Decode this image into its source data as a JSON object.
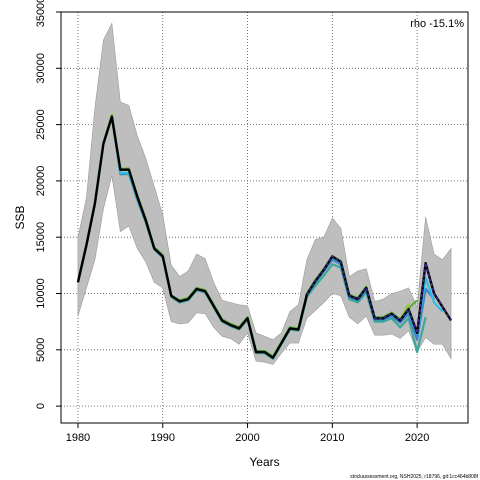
{
  "chart_data": {
    "type": "line",
    "xlabel": "Years",
    "ylabel": "SSB",
    "xlim": [
      1978,
      2026
    ],
    "ylim": [
      -1500,
      35000
    ],
    "x_ticks": [
      1980,
      1990,
      2000,
      2010,
      2020
    ],
    "y_ticks": [
      0,
      5000,
      10000,
      15000,
      20000,
      25000,
      30000,
      35000
    ],
    "grid": true,
    "annotation": "rho -15.1%",
    "footer": "stockassessment.org, NSH2025, r18796, git:1cc464b808f",
    "confidence_band": {
      "years": [
        1980,
        1981,
        1982,
        1983,
        1984,
        1985,
        1986,
        1987,
        1988,
        1989,
        1990,
        1991,
        1992,
        1993,
        1994,
        1995,
        1996,
        1997,
        1998,
        1999,
        2000,
        2001,
        2002,
        2003,
        2004,
        2005,
        2006,
        2007,
        2008,
        2009,
        2010,
        2011,
        2012,
        2013,
        2014,
        2015,
        2016,
        2017,
        2018,
        2019,
        2020,
        2021,
        2022,
        2023,
        2024
      ],
      "lower": [
        8000,
        10500,
        13000,
        17500,
        20500,
        15500,
        16000,
        14000,
        12800,
        11000,
        10500,
        7500,
        7300,
        7400,
        8300,
        8200,
        7000,
        6200,
        6000,
        5500,
        6500,
        4000,
        3900,
        3700,
        4700,
        5600,
        5600,
        7800,
        8500,
        9200,
        10000,
        9800,
        7900,
        7300,
        8000,
        6300,
        6300,
        6400,
        6000,
        6700,
        4800,
        6100,
        5500,
        5500,
        4200
      ],
      "upper": [
        15000,
        18500,
        26500,
        32500,
        34000,
        27000,
        26700,
        24000,
        22000,
        19500,
        17000,
        12500,
        11500,
        12000,
        13500,
        13100,
        11000,
        9400,
        9200,
        9000,
        8900,
        6500,
        6200,
        5900,
        6500,
        8400,
        9000,
        13000,
        14800,
        15000,
        16700,
        15800,
        11500,
        12000,
        12200,
        9300,
        9500,
        10000,
        10200,
        10500,
        8800,
        16800,
        13500,
        13000,
        14000
      ]
    },
    "series": [
      {
        "x": [
          1980,
          1981,
          1982,
          1983,
          1984,
          1985,
          1986,
          1987,
          1988,
          1989,
          1990,
          1991,
          1992,
          1993,
          1994,
          1995,
          1996,
          1997,
          1998,
          1999,
          2000,
          2001,
          2002,
          2003,
          2004,
          2005,
          2006,
          2007,
          2008,
          2009,
          2010,
          2011,
          2012,
          2013,
          2014,
          2015,
          2016,
          2017,
          2018,
          2019,
          2020,
          2021,
          2022,
          2023,
          2024
        ],
        "values": [
          11000,
          14300,
          18000,
          23300,
          25700,
          21000,
          21000,
          18600,
          16500,
          14000,
          13300,
          9800,
          9300,
          9500,
          10400,
          10200,
          8900,
          7600,
          7200,
          6900,
          7800,
          4800,
          4800,
          4300,
          5600,
          6900,
          6800,
          9900,
          11100,
          12100,
          13300,
          12800,
          9800,
          9500,
          10500,
          7800,
          7800,
          8200,
          7600,
          8600,
          6500,
          12700,
          10000,
          8800,
          7600
        ],
        "color": "#000000",
        "dashed_over": "#3a2a9e"
      },
      {
        "x": [
          1980,
          1981,
          1982,
          1983,
          1984,
          1985,
          1986,
          1987,
          1988,
          1989,
          1990,
          1991,
          1992,
          1993,
          1994,
          1995,
          1996,
          1997,
          1998,
          1999,
          2000,
          2001,
          2002,
          2003,
          2004,
          2005,
          2006,
          2007,
          2008,
          2009,
          2010,
          2011,
          2012,
          2013,
          2014,
          2015,
          2016,
          2017,
          2018,
          2019,
          2020,
          2021,
          2022,
          2023
        ],
        "values": [
          11000,
          14300,
          18000,
          23300,
          25700,
          20700,
          20700,
          18500,
          16500,
          14000,
          13300,
          9800,
          9300,
          9500,
          10400,
          10200,
          8900,
          7600,
          7200,
          6900,
          7800,
          4800,
          4800,
          4300,
          5600,
          6900,
          6800,
          9900,
          11100,
          12100,
          13200,
          12700,
          9800,
          9500,
          10400,
          7800,
          7800,
          8100,
          7600,
          8400,
          6400,
          11400,
          9200,
          8400
        ],
        "color": "#2fbde0"
      },
      {
        "x": [
          1980,
          1981,
          1982,
          1983,
          1984,
          1985,
          1986,
          1987,
          1988,
          1989,
          1990,
          1991,
          1992,
          1993,
          1994,
          1995,
          1996,
          1997,
          1998,
          1999,
          2000,
          2001,
          2002,
          2003,
          2004,
          2005,
          2006,
          2007,
          2008,
          2009,
          2010,
          2011,
          2012,
          2013,
          2014,
          2015,
          2016,
          2017,
          2018,
          2019,
          2020,
          2021,
          2022
        ],
        "values": [
          11000,
          14300,
          18000,
          23300,
          25700,
          20600,
          20700,
          18400,
          16400,
          14000,
          13300,
          9800,
          9300,
          9500,
          10400,
          10200,
          8900,
          7600,
          7200,
          6900,
          7800,
          4800,
          4800,
          4300,
          5600,
          6900,
          6800,
          9900,
          11000,
          12000,
          13000,
          12600,
          9700,
          9400,
          10300,
          7700,
          7700,
          8000,
          7400,
          8200,
          5900,
          10400,
          9500
        ],
        "color": "#3f7fd0"
      },
      {
        "x": [
          1980,
          1981,
          1982,
          1983,
          1984,
          1985,
          1986,
          1987,
          1988,
          1989,
          1990,
          1991,
          1992,
          1993,
          1994,
          1995,
          1996,
          1997,
          1998,
          1999,
          2000,
          2001,
          2002,
          2003,
          2004,
          2005,
          2006,
          2007,
          2008,
          2009,
          2010,
          2011,
          2012,
          2013,
          2014,
          2015,
          2016,
          2017,
          2018,
          2019,
          2020,
          2021
        ],
        "values": [
          11000,
          14300,
          18000,
          23300,
          25700,
          20600,
          20600,
          18300,
          16300,
          13900,
          13200,
          9700,
          9200,
          9400,
          10300,
          10100,
          8800,
          7500,
          7100,
          6800,
          7700,
          4700,
          4700,
          4200,
          5500,
          6800,
          6700,
          9700,
          10700,
          11600,
          12600,
          12300,
          9500,
          9200,
          10100,
          7500,
          7500,
          7800,
          7000,
          7800,
          4800,
          7900
        ],
        "color": "#3aa899"
      },
      {
        "x": [
          1980,
          1981,
          1982,
          1983,
          1984,
          1985,
          1986,
          1987,
          1988,
          1989,
          1990,
          1991,
          1992,
          1993,
          1994,
          1995,
          1996,
          1997,
          1998,
          1999,
          2000,
          2001,
          2002,
          2003,
          2004,
          2005,
          2006,
          2007,
          2008,
          2009,
          2010,
          2011,
          2012,
          2013,
          2014,
          2015,
          2016,
          2017,
          2018,
          2019,
          2020
        ],
        "values": [
          11000,
          14300,
          18000,
          23300,
          25800,
          21000,
          21100,
          18700,
          16600,
          14100,
          13400,
          9800,
          9400,
          9600,
          10500,
          10300,
          9000,
          7700,
          7300,
          7000,
          7900,
          4900,
          4900,
          4400,
          5700,
          7000,
          6900,
          10000,
          11200,
          12200,
          13300,
          12900,
          9900,
          9600,
          10600,
          7900,
          7900,
          8300,
          7700,
          8700,
          9400
        ],
        "color": "#5fae3a"
      },
      {
        "x": [
          1980,
          1981,
          1982,
          1983,
          1984,
          1985,
          1986,
          1987,
          1988,
          1989,
          1990,
          1991,
          1992,
          1993,
          1994,
          1995,
          1996,
          1997,
          1998,
          1999,
          2000,
          2001,
          2002,
          2003,
          2004,
          2005,
          2006,
          2007,
          2008,
          2009,
          2010,
          2011,
          2012,
          2013,
          2014,
          2015,
          2016,
          2017,
          2018,
          2019
        ],
        "values": [
          11100,
          14400,
          18100,
          23400,
          25900,
          21100,
          21100,
          18700,
          16600,
          14100,
          13400,
          9800,
          9400,
          9600,
          10500,
          10300,
          9000,
          7700,
          7300,
          7000,
          7900,
          4900,
          4900,
          4400,
          5700,
          7000,
          6900,
          10000,
          11200,
          12200,
          13300,
          12900,
          9900,
          9600,
          10600,
          7900,
          7900,
          8300,
          7700,
          9100
        ],
        "color": "#9cc83a"
      }
    ]
  }
}
